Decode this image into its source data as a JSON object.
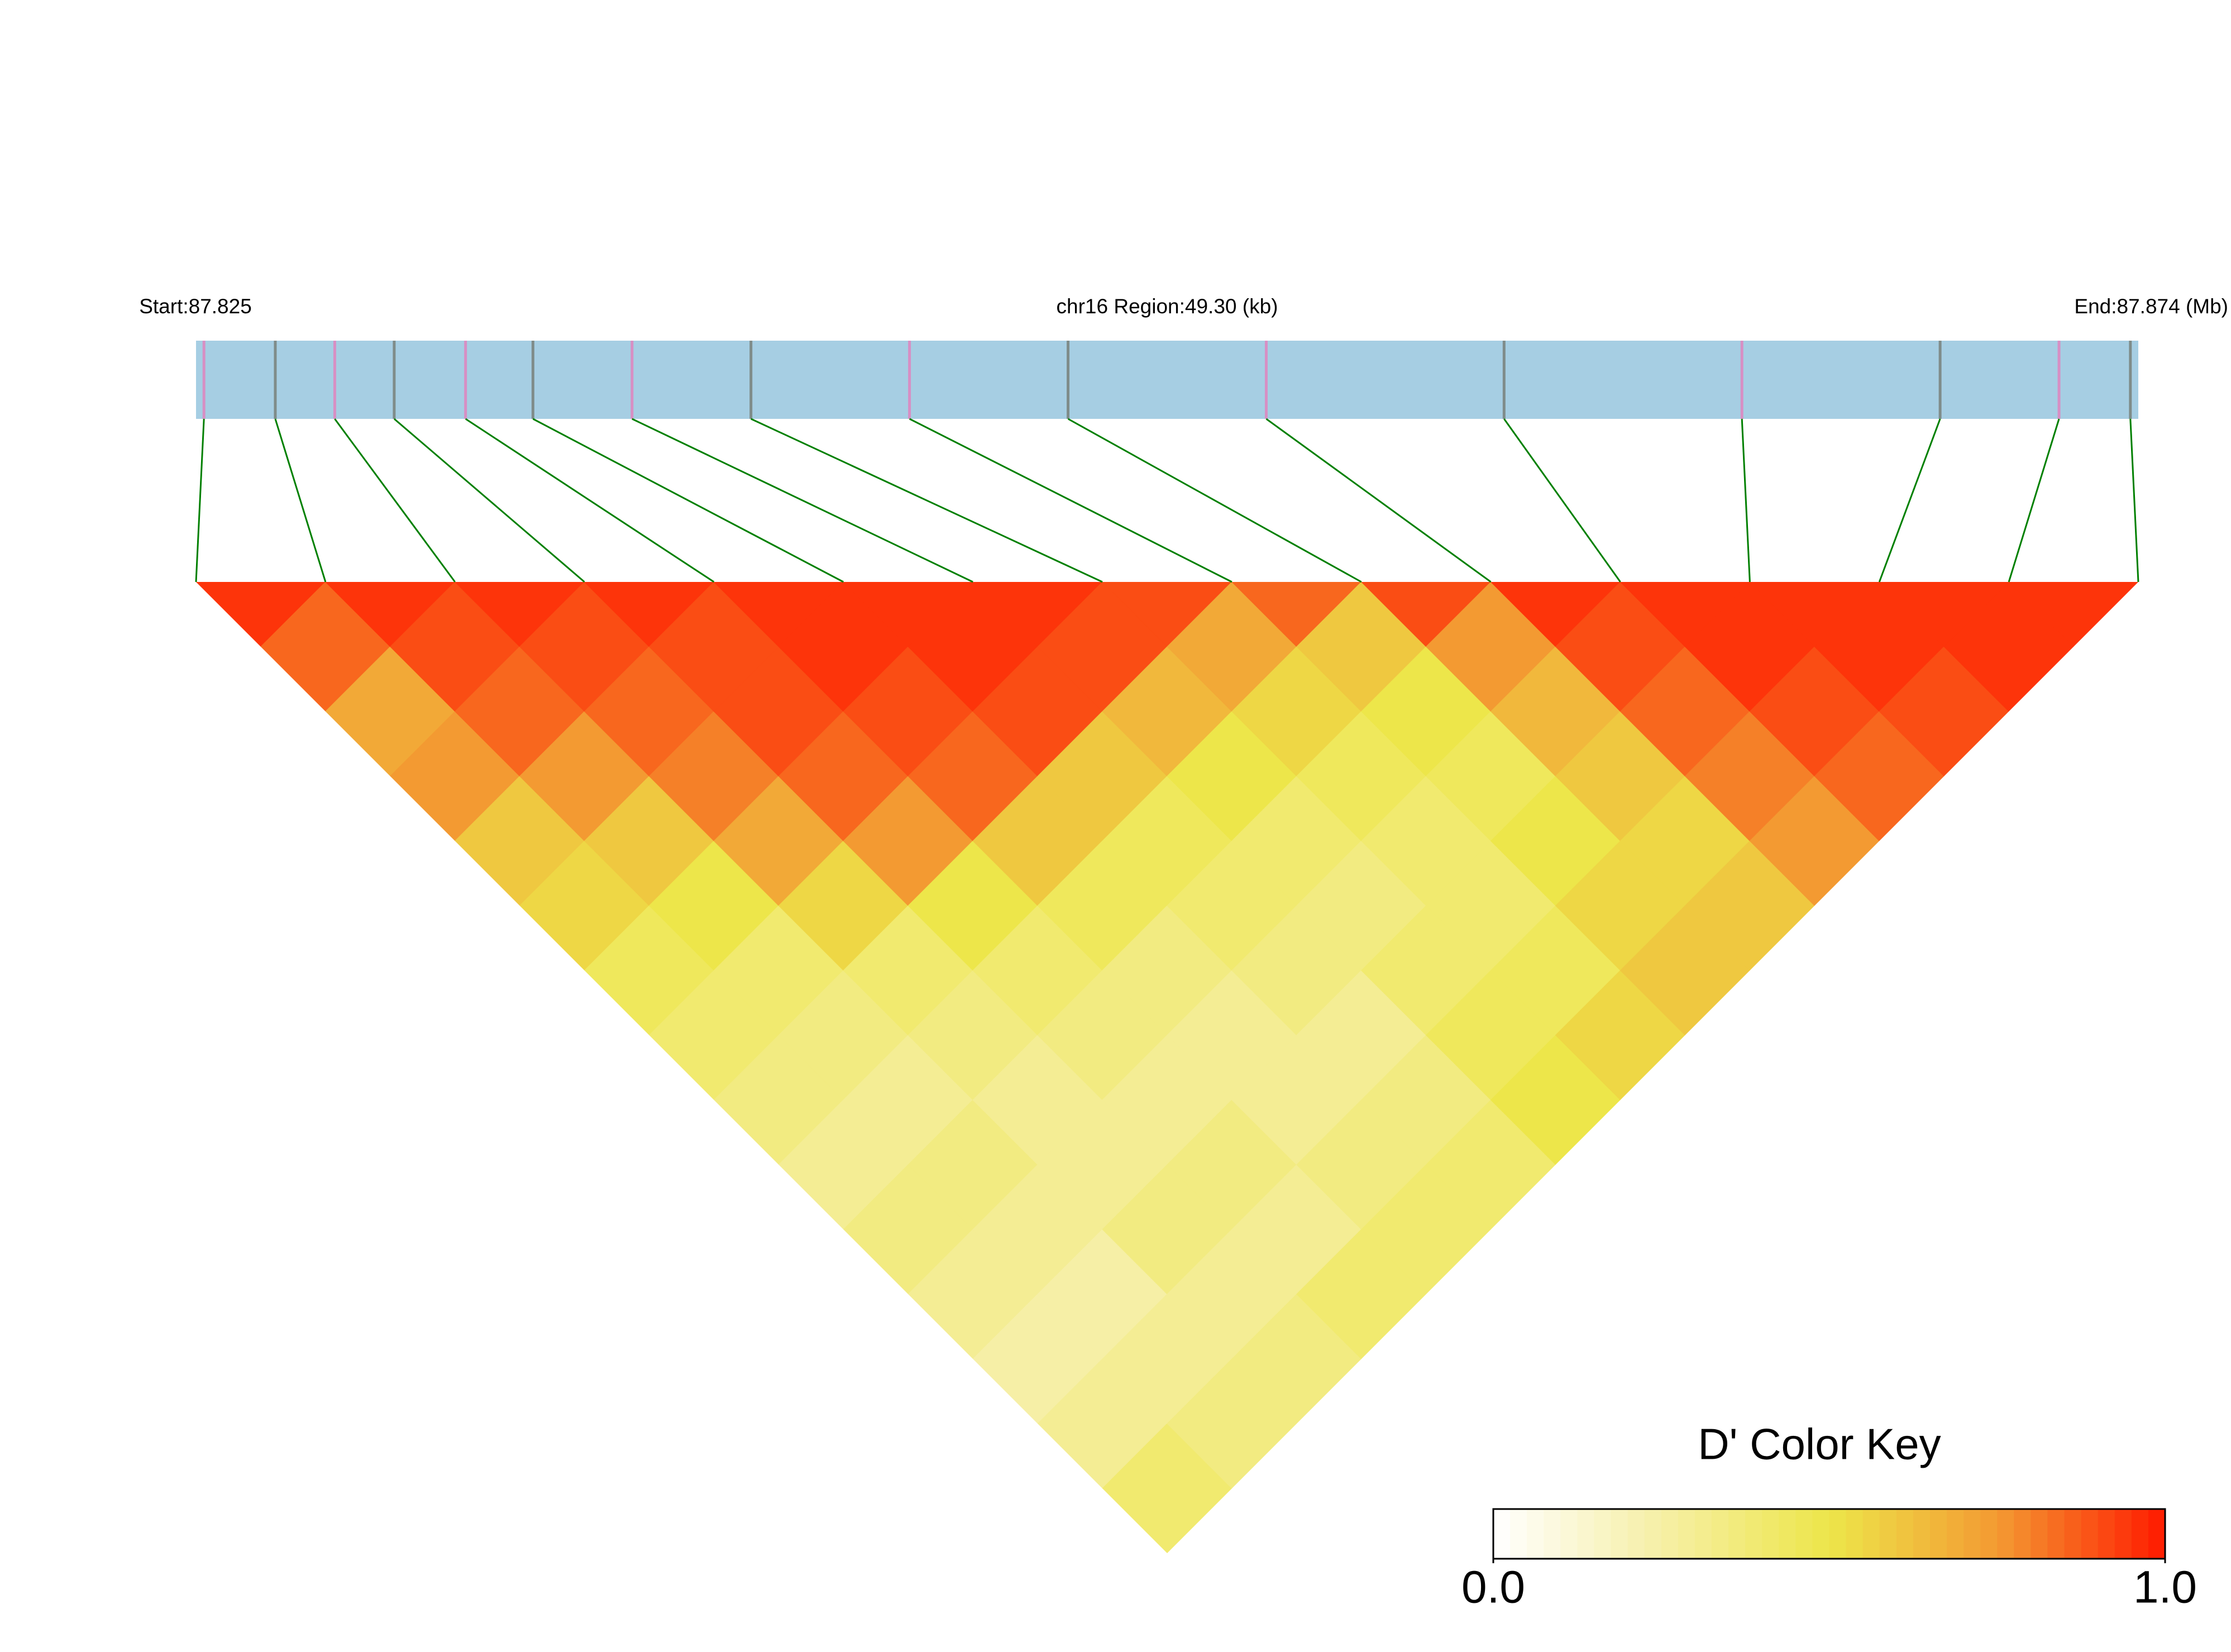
{
  "chart_data": {
    "type": "ld-heatmap",
    "start_label": "Start:87.825",
    "region_label": "chr16 Region:49.30 (kb)",
    "end_label": "End:87.874 (Mb)",
    "xlim": [
      87.825,
      87.874
    ],
    "snp_positions": [
      87.8252,
      87.827,
      87.8285,
      87.83,
      87.8318,
      87.8335,
      87.836,
      87.839,
      87.843,
      87.847,
      87.852,
      87.858,
      87.864,
      87.869,
      87.872,
      87.8738
    ],
    "track_color": "#a6cee3",
    "snp_colors": [
      "#d78fc4",
      "#7f8c8a"
    ],
    "link_color": "#008000",
    "dprime": [
      [
        0.95,
        0.85,
        0.7,
        0.75,
        0.6,
        0.55,
        0.45,
        0.4,
        0.35,
        0.3,
        0.35,
        0.3,
        0.25,
        0.3,
        0.4
      ],
      [
        0.95,
        0.9,
        0.85,
        0.75,
        0.6,
        0.5,
        0.4,
        0.35,
        0.3,
        0.35,
        0.3,
        0.25,
        0.3,
        0.35
      ],
      [
        0.95,
        0.9,
        0.85,
        0.8,
        0.7,
        0.55,
        0.4,
        0.35,
        0.3,
        0.3,
        0.35,
        0.3,
        0.35
      ],
      [
        0.95,
        0.9,
        0.9,
        0.85,
        0.75,
        0.5,
        0.4,
        0.35,
        0.3,
        0.35,
        0.3,
        0.4
      ],
      [
        0.95,
        0.95,
        0.9,
        0.85,
        0.6,
        0.45,
        0.35,
        0.3,
        0.3,
        0.35,
        0.4
      ],
      [
        0.95,
        0.95,
        0.9,
        0.6,
        0.45,
        0.4,
        0.35,
        0.3,
        0.35,
        0.4
      ],
      [
        0.95,
        0.9,
        0.65,
        0.5,
        0.4,
        0.35,
        0.4,
        0.45,
        0.5
      ],
      [
        0.9,
        0.7,
        0.55,
        0.45,
        0.4,
        0.4,
        0.45,
        0.55
      ],
      [
        0.85,
        0.6,
        0.5,
        0.45,
        0.5,
        0.55,
        0.6
      ],
      [
        0.9,
        0.75,
        0.65,
        0.6,
        0.55,
        0.6
      ],
      [
        0.95,
        0.9,
        0.85,
        0.8,
        0.75
      ],
      [
        0.95,
        0.95,
        0.9,
        0.85
      ],
      [
        0.95,
        0.95,
        0.9
      ],
      [
        0.95,
        0.95
      ],
      [
        0.95
      ]
    ],
    "colorbar": {
      "title": "D' Color Key",
      "lim": [
        0,
        1
      ],
      "ticks": [
        {
          "value": 0,
          "label": "0.0"
        },
        {
          "value": 1,
          "label": "1.0"
        }
      ],
      "colormap": [
        "#ffffff",
        "#f6efa6",
        "#ede64a",
        "#f39a32",
        "#ff1a00"
      ]
    }
  }
}
